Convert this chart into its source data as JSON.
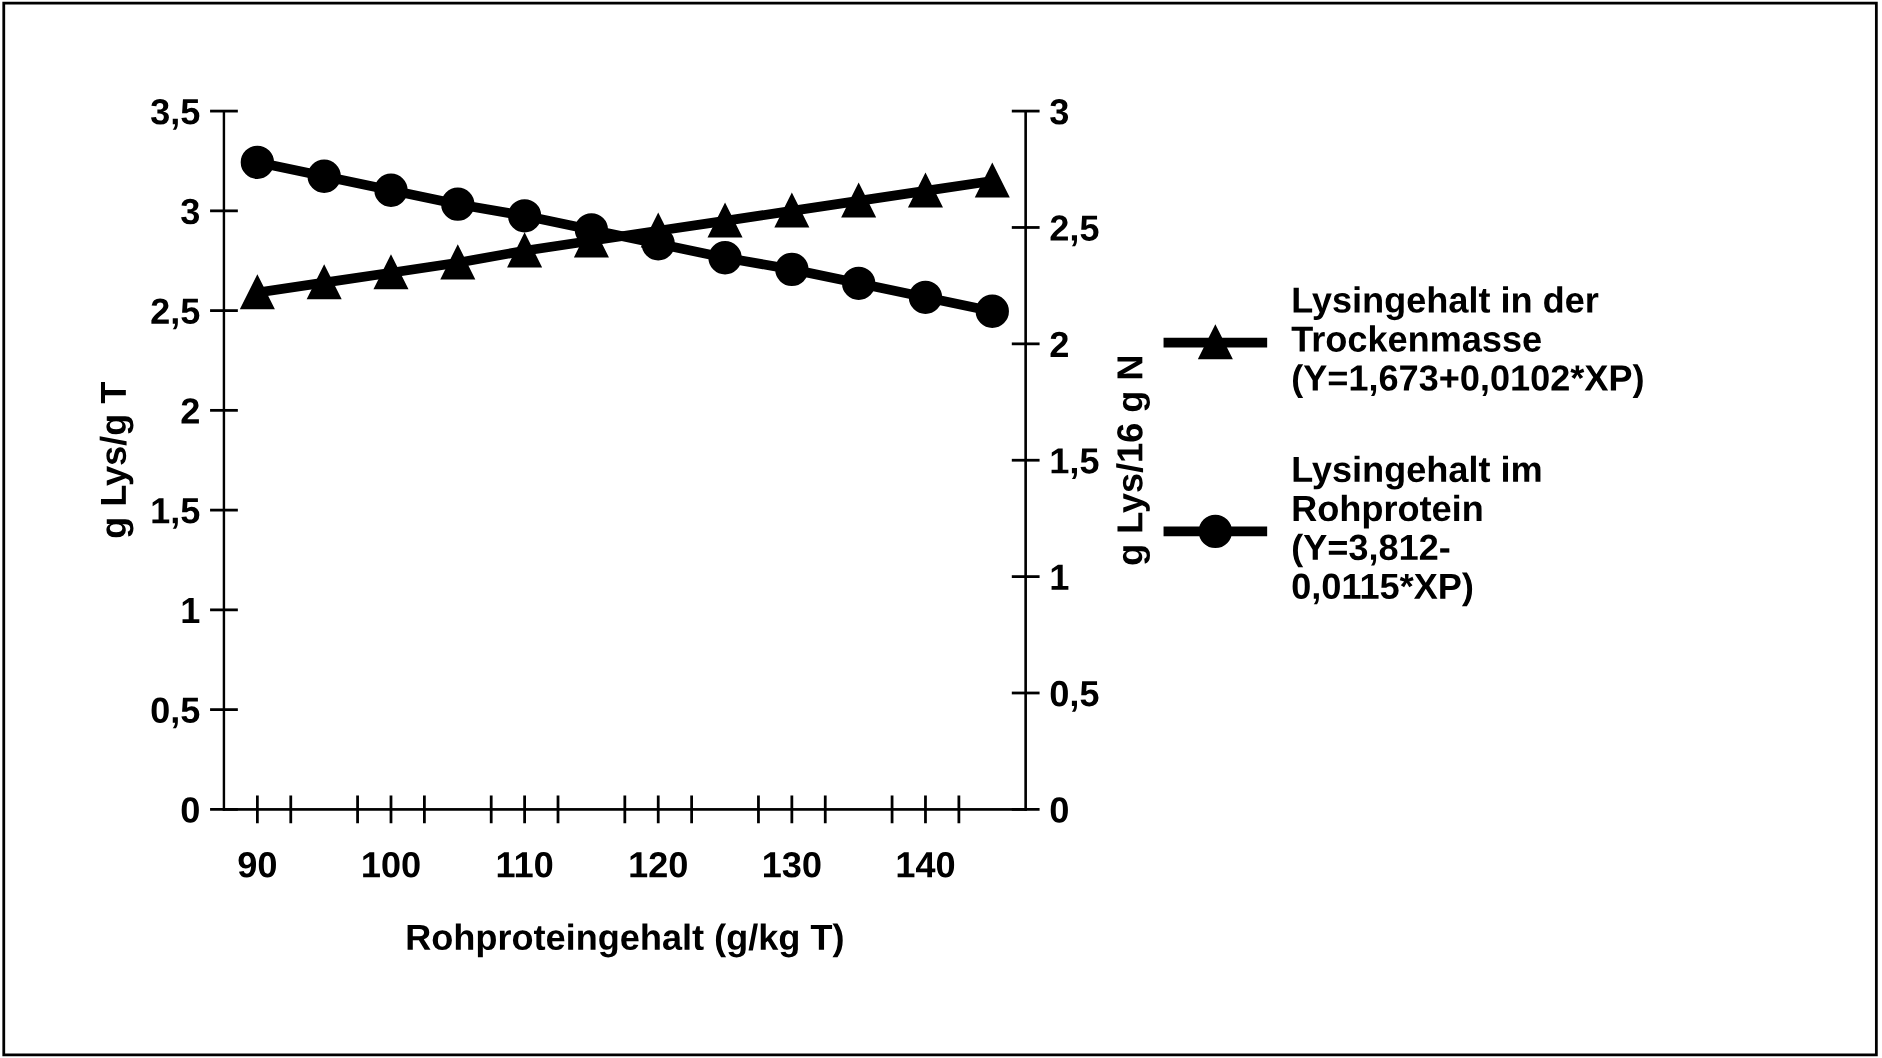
{
  "chart_data": {
    "type": "line",
    "xlabel": "Rohproteingehalt (g/kg T)",
    "ylabel": "g Lys/g T",
    "y2label": "g Lys/16 g N",
    "x": [
      90,
      95,
      100,
      105,
      110,
      115,
      120,
      125,
      130,
      135,
      140,
      145
    ],
    "xlim": [
      87.5,
      147.5
    ],
    "xticks": [
      90,
      {
        "value": 92.5,
        "label": null
      },
      {
        "value": 97.5,
        "label": null
      },
      100,
      {
        "value": 102.5,
        "label": null
      },
      {
        "value": 107.5,
        "label": null
      },
      110,
      {
        "value": 112.5,
        "label": null
      },
      {
        "value": 117.5,
        "label": null
      },
      120,
      {
        "value": 122.5,
        "label": null
      },
      {
        "value": 127.5,
        "label": null
      },
      130,
      {
        "value": 132.5,
        "label": null
      },
      {
        "value": 137.5,
        "label": null
      },
      140,
      {
        "value": 142.5,
        "label": null
      }
    ],
    "ylim": [
      0,
      3.5
    ],
    "yticks": [
      0,
      {
        "value": 0.5,
        "label": "0,5"
      },
      1,
      {
        "value": 1.5,
        "label": "1,5"
      },
      2,
      {
        "value": 2.5,
        "label": "2,5"
      },
      3,
      {
        "value": 3.5,
        "label": "3,5"
      }
    ],
    "y2lim": [
      0,
      3
    ],
    "y2ticks": [
      0,
      {
        "value": 0.5,
        "label": "0,5"
      },
      1,
      {
        "value": 1.5,
        "label": "1,5"
      },
      2,
      {
        "value": 2.5,
        "label": "2,5"
      },
      3
    ],
    "grid": false,
    "legend": "right",
    "line_style": "solid",
    "series": [
      {
        "name": "Lysingehalt in der\nTrockenmasse\n(Y=1,673+0,0102*XP)",
        "color": "#000000",
        "marker": "triangle",
        "values": [
          2.59,
          2.64,
          2.69,
          2.74,
          2.8,
          2.85,
          2.9,
          2.95,
          3.0,
          3.05,
          3.1,
          3.15
        ]
      },
      {
        "name": "Lysingehalt im\nRohprotein\n(Y=3,812-\n0,0115*XP)",
        "color": "#000000",
        "marker": "circle",
        "axis": "y2",
        "values": [
          2.78,
          2.72,
          2.66,
          2.6,
          2.55,
          2.49,
          2.43,
          2.37,
          2.32,
          2.26,
          2.2,
          2.14
        ]
      }
    ]
  }
}
